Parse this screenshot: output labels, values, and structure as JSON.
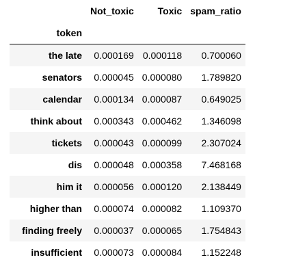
{
  "table": {
    "columns": [
      "Not_toxic",
      "Toxic",
      "spam_ratio"
    ],
    "index_name": "token",
    "rows": [
      {
        "token": "the late",
        "not_toxic": "0.000169",
        "toxic": "0.000118",
        "spam_ratio": "0.700060"
      },
      {
        "token": "senators",
        "not_toxic": "0.000045",
        "toxic": "0.000080",
        "spam_ratio": "1.789820"
      },
      {
        "token": "calendar",
        "not_toxic": "0.000134",
        "toxic": "0.000087",
        "spam_ratio": "0.649025"
      },
      {
        "token": "think about",
        "not_toxic": "0.000343",
        "toxic": "0.000462",
        "spam_ratio": "1.346098"
      },
      {
        "token": "tickets",
        "not_toxic": "0.000043",
        "toxic": "0.000099",
        "spam_ratio": "2.307024"
      },
      {
        "token": "dis",
        "not_toxic": "0.000048",
        "toxic": "0.000358",
        "spam_ratio": "7.468168"
      },
      {
        "token": "him it",
        "not_toxic": "0.000056",
        "toxic": "0.000120",
        "spam_ratio": "2.138449"
      },
      {
        "token": "higher than",
        "not_toxic": "0.000074",
        "toxic": "0.000082",
        "spam_ratio": "1.109370"
      },
      {
        "token": "finding freely",
        "not_toxic": "0.000037",
        "toxic": "0.000065",
        "spam_ratio": "1.754843"
      },
      {
        "token": "insufficient",
        "not_toxic": "0.000073",
        "toxic": "0.000084",
        "spam_ratio": "1.152248"
      }
    ]
  }
}
